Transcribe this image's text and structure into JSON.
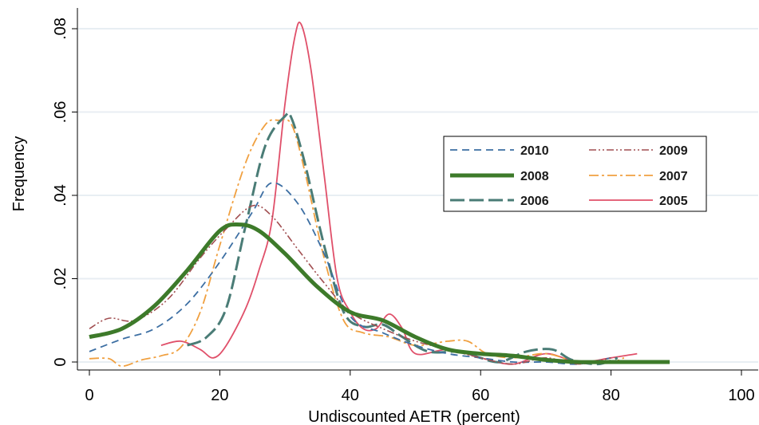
{
  "chart_data": {
    "type": "line",
    "title": "",
    "xlabel": "Undiscounted AETR (percent)",
    "ylabel": "Frequency",
    "xlim": [
      0,
      100
    ],
    "ylim": [
      0,
      0.08
    ],
    "x_ticks": [
      0,
      20,
      40,
      60,
      80,
      100
    ],
    "x_tick_labels": [
      "0",
      "20",
      "40",
      "60",
      "80",
      "100"
    ],
    "y_ticks": [
      0,
      0.02,
      0.04,
      0.06,
      0.08
    ],
    "y_tick_labels": [
      "0",
      ".02",
      ".04",
      ".06",
      ".08"
    ],
    "grid": "horizontal",
    "legend_position": "right",
    "series": [
      {
        "name": "2010",
        "color": "#3d6fa3",
        "style": "dashed",
        "points": [
          [
            0,
            0.0025
          ],
          [
            5,
            0.0055
          ],
          [
            10,
            0.008
          ],
          [
            15,
            0.014
          ],
          [
            20,
            0.024
          ],
          [
            25,
            0.036
          ],
          [
            28,
            0.043
          ],
          [
            32,
            0.038
          ],
          [
            36,
            0.026
          ],
          [
            40,
            0.011
          ],
          [
            45,
            0.007
          ],
          [
            50,
            0.004
          ],
          [
            55,
            0.002
          ],
          [
            60,
            0.001
          ],
          [
            65,
            0.0
          ],
          [
            70,
            0.0
          ],
          [
            75,
            -0.0005
          ],
          [
            80,
            0.001
          ]
        ]
      },
      {
        "name": "2009",
        "color": "#a14e50",
        "style": "dash-dot-dot",
        "points": [
          [
            0,
            0.008
          ],
          [
            3,
            0.0105
          ],
          [
            7,
            0.01
          ],
          [
            12,
            0.015
          ],
          [
            17,
            0.025
          ],
          [
            21,
            0.032
          ],
          [
            25,
            0.0375
          ],
          [
            28,
            0.035
          ],
          [
            32,
            0.027
          ],
          [
            36,
            0.019
          ],
          [
            40,
            0.012
          ],
          [
            45,
            0.008
          ],
          [
            50,
            0.005
          ],
          [
            55,
            0.003
          ],
          [
            60,
            0.001
          ],
          [
            65,
            -0.0005
          ],
          [
            70,
            0.001
          ],
          [
            75,
            -0.0005
          ],
          [
            80,
            0.001
          ]
        ]
      },
      {
        "name": "2008",
        "color": "#3d7a2a",
        "style": "solid-bold",
        "points": [
          [
            0,
            0.006
          ],
          [
            5,
            0.008
          ],
          [
            10,
            0.0135
          ],
          [
            15,
            0.022
          ],
          [
            20,
            0.0315
          ],
          [
            23,
            0.033
          ],
          [
            26,
            0.0315
          ],
          [
            30,
            0.026
          ],
          [
            35,
            0.018
          ],
          [
            40,
            0.012
          ],
          [
            45,
            0.01
          ],
          [
            50,
            0.006
          ],
          [
            55,
            0.003
          ],
          [
            60,
            0.002
          ],
          [
            65,
            0.0015
          ],
          [
            70,
            0.0005
          ],
          [
            75,
            0.0
          ],
          [
            80,
            0.0
          ],
          [
            85,
            0.0
          ],
          [
            89,
            0.0
          ]
        ]
      },
      {
        "name": "2007",
        "color": "#f0a040",
        "style": "dash-dot",
        "points": [
          [
            0,
            0.0008
          ],
          [
            3,
            0.0008
          ],
          [
            5,
            -0.001
          ],
          [
            8,
            0.0005
          ],
          [
            11,
            0.0015
          ],
          [
            14,
            0.0035
          ],
          [
            17,
            0.012
          ],
          [
            20,
            0.028
          ],
          [
            24,
            0.048
          ],
          [
            27,
            0.057
          ],
          [
            29,
            0.058
          ],
          [
            31,
            0.057
          ],
          [
            33,
            0.046
          ],
          [
            36,
            0.025
          ],
          [
            39,
            0.01
          ],
          [
            42,
            0.007
          ],
          [
            46,
            0.006
          ],
          [
            50,
            0.004
          ],
          [
            55,
            0.005
          ],
          [
            58,
            0.005
          ],
          [
            61,
            0.002
          ],
          [
            65,
            0.001
          ],
          [
            70,
            0.002
          ],
          [
            75,
            0.0
          ],
          [
            80,
            0.0
          ],
          [
            82,
            0.001
          ]
        ]
      },
      {
        "name": "2006",
        "color": "#4a7c76",
        "style": "long-dash",
        "points": [
          [
            15,
            0.004
          ],
          [
            18,
            0.006
          ],
          [
            21,
            0.013
          ],
          [
            24,
            0.033
          ],
          [
            27,
            0.052
          ],
          [
            30,
            0.059
          ],
          [
            31,
            0.0585
          ],
          [
            33,
            0.048
          ],
          [
            36,
            0.028
          ],
          [
            39,
            0.012
          ],
          [
            42,
            0.0085
          ],
          [
            45,
            0.009
          ],
          [
            48,
            0.006
          ],
          [
            52,
            0.0025
          ],
          [
            57,
            0.0025
          ],
          [
            60,
            0.001
          ],
          [
            63,
            0.0
          ],
          [
            67,
            0.0025
          ],
          [
            71,
            0.003
          ],
          [
            74,
            0.0005
          ],
          [
            78,
            -0.0005
          ],
          [
            81,
            0.001
          ]
        ]
      },
      {
        "name": "2005",
        "color": "#e0506a",
        "style": "solid",
        "points": [
          [
            11,
            0.004
          ],
          [
            14,
            0.005
          ],
          [
            17,
            0.003
          ],
          [
            19,
            0.001
          ],
          [
            21,
            0.004
          ],
          [
            24,
            0.013
          ],
          [
            26,
            0.022
          ],
          [
            28,
            0.034
          ],
          [
            30,
            0.062
          ],
          [
            31.5,
            0.078
          ],
          [
            32.5,
            0.081
          ],
          [
            34,
            0.07
          ],
          [
            36,
            0.045
          ],
          [
            38,
            0.02
          ],
          [
            40,
            0.012
          ],
          [
            42,
            0.008
          ],
          [
            44,
            0.008
          ],
          [
            46,
            0.0115
          ],
          [
            48,
            0.008
          ],
          [
            50,
            0.002
          ],
          [
            55,
            0.003
          ],
          [
            60,
            0.001
          ],
          [
            65,
            -0.0005
          ],
          [
            70,
            0.002
          ],
          [
            75,
            0.0
          ],
          [
            80,
            0.001
          ],
          [
            84,
            0.002
          ]
        ]
      }
    ]
  }
}
